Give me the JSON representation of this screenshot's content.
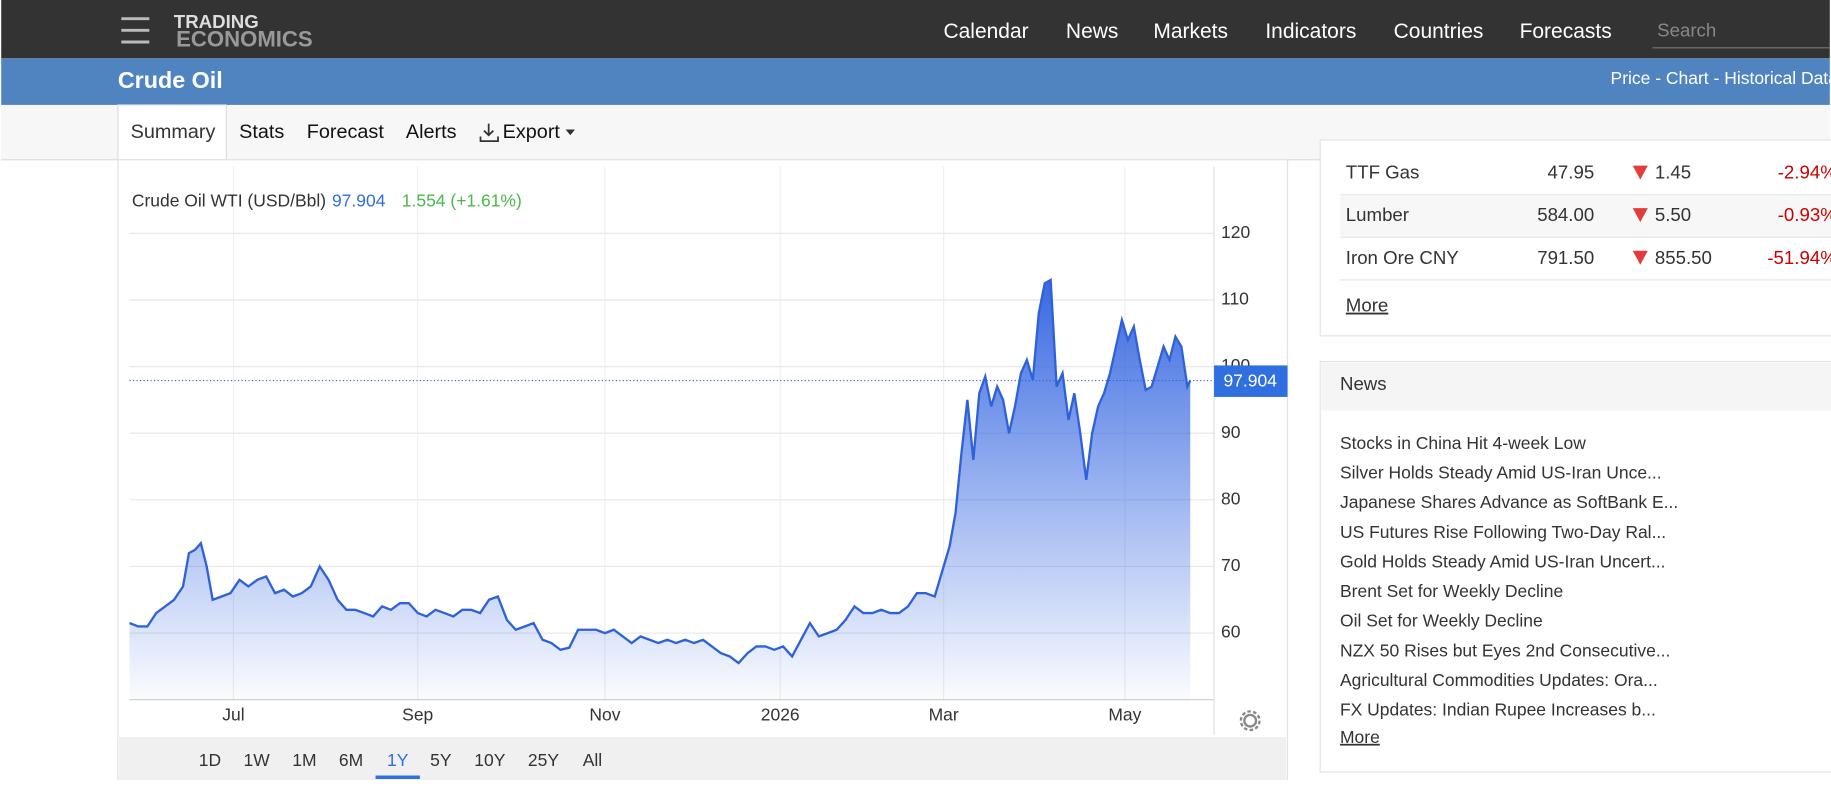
{
  "header": {
    "logo_top": "TRADING",
    "logo_bottom": "ECONOMICS",
    "nav": [
      "Calendar",
      "News",
      "Markets",
      "Indicators",
      "Countries",
      "Forecasts"
    ],
    "search": "Search"
  },
  "page": {
    "title": "Crude Oil",
    "subnav": "Price - Chart - Historical Data"
  },
  "tabs": [
    "Summary",
    "Stats",
    "Forecast",
    "Alerts",
    "Export"
  ],
  "chart_data": {
    "type": "area",
    "title": "Crude Oil WTI (USD/Bbl)",
    "change": "1.554 (+1.61%)",
    "color": "#2f62d8",
    "x": [
      0,
      3,
      6,
      9,
      12,
      15,
      18,
      20,
      22,
      24,
      26,
      28,
      31,
      34,
      37,
      40,
      43,
      46,
      49,
      52,
      55,
      58,
      61,
      64,
      67,
      70,
      73,
      76,
      79,
      82,
      85,
      88,
      91,
      94,
      97,
      100,
      103,
      106,
      109,
      112,
      115,
      118,
      121,
      124,
      127,
      130,
      133,
      136,
      139,
      142,
      145,
      148,
      151,
      154,
      157,
      160,
      163,
      166,
      169,
      172,
      175,
      178,
      181,
      184,
      187,
      190,
      193,
      196,
      199,
      202,
      205,
      208,
      211,
      214,
      217,
      220,
      223,
      226,
      229,
      232,
      235,
      238,
      241,
      244,
      247,
      250,
      253,
      256,
      259,
      262,
      265,
      268,
      271,
      274,
      276,
      278,
      280,
      282,
      284,
      286,
      288,
      290,
      292,
      294,
      296,
      298,
      300,
      302,
      304,
      306,
      308,
      310,
      312,
      314,
      316,
      318,
      320,
      322,
      324,
      326,
      328,
      330,
      332,
      334,
      336,
      338,
      340,
      342,
      344,
      346,
      348,
      350,
      352,
      354,
      356,
      357
    ],
    "values": [
      61.5,
      61,
      61,
      63,
      64,
      65,
      67,
      72,
      72.5,
      73.5,
      70,
      65,
      65.5,
      66,
      68,
      67,
      68,
      68.5,
      66,
      66.5,
      65.5,
      66,
      67,
      70,
      68,
      65,
      63.5,
      63.5,
      63,
      62.5,
      64,
      63.5,
      64.5,
      64.5,
      63,
      62.5,
      63.5,
      63,
      62.5,
      63.5,
      63.5,
      63,
      65,
      65.5,
      62,
      60.5,
      61,
      61.5,
      59,
      58.5,
      57.5,
      57.8,
      60.5,
      60.5,
      60.5,
      60,
      60.5,
      59.5,
      58.5,
      59.5,
      59,
      58.5,
      59,
      58.5,
      59,
      58.5,
      59,
      58,
      57,
      56.5,
      55.5,
      57,
      58,
      58,
      57.5,
      58,
      56.5,
      59,
      61.5,
      59.5,
      60,
      60.5,
      62,
      64,
      63,
      63,
      63.5,
      63,
      63,
      64,
      66,
      66,
      65.5,
      70,
      73,
      78,
      87,
      95,
      86,
      96,
      98.5,
      94,
      97,
      95,
      90,
      94,
      99,
      101,
      98,
      108,
      112.5,
      113,
      97,
      99,
      92,
      96,
      90,
      83,
      90,
      94,
      96,
      99,
      103,
      107,
      104,
      106,
      101,
      96.5,
      97,
      100,
      103,
      101,
      104.5,
      103,
      97,
      97.904
    ],
    "xlim": [
      0,
      365
    ],
    "xticks": [
      {
        "value": 35,
        "label": "Jul"
      },
      {
        "value": 97,
        "label": "Sep"
      },
      {
        "value": 160,
        "label": "Nov"
      },
      {
        "value": 219,
        "label": "2026"
      },
      {
        "value": 274,
        "label": "Mar"
      },
      {
        "value": 335,
        "label": "May"
      }
    ],
    "ylim": [
      50,
      130
    ],
    "yticks": [
      60,
      70,
      80,
      90,
      100,
      110,
      120
    ],
    "grid": true
  },
  "ranges": [
    "1D",
    "1W",
    "1M",
    "6M",
    "1Y",
    "5Y",
    "10Y",
    "25Y",
    "All"
  ],
  "active_range": "1Y",
  "markets": {
    "rows": [
      [
        "TTF Gas",
        "47.95",
        "1.45",
        "-2.94%"
      ],
      [
        "Lumber",
        "584.00",
        "5.50",
        "-0.93%"
      ],
      [
        "Iron Ore CNY",
        "791.50",
        "855.50",
        "-51.94%"
      ]
    ],
    "more": "More"
  },
  "news": {
    "title": "News",
    "items": [
      "Stocks in China Hit 4-week Low",
      "Silver Holds Steady Amid US-Iran Unce...",
      "Japanese Shares Advance as SoftBank E...",
      "US Futures Rise Following Two-Day Ral...",
      "Gold Holds Steady Amid US-Iran Uncert...",
      "Brent Set for Weekly Decline",
      "Oil Set for Weekly Decline",
      "NZX 50 Rises but Eyes 2nd Consecutive...",
      "Agricultural Commodities Updates: Ora...",
      "FX Updates: Indian Rupee Increases b..."
    ],
    "more": "More"
  }
}
